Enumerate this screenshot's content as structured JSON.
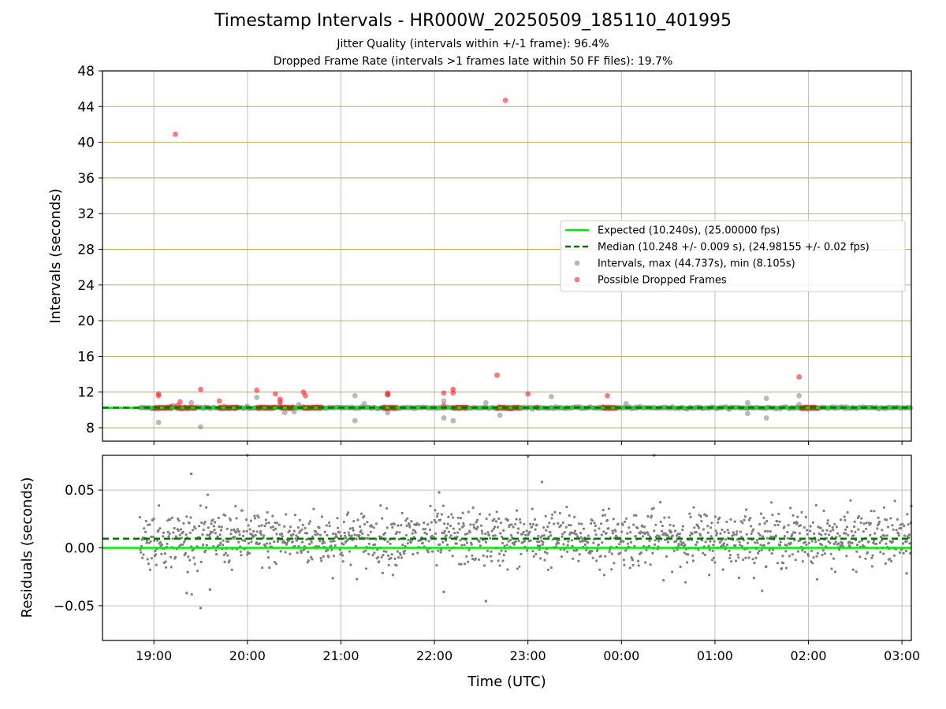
{
  "figure": {
    "title": "Timestamp Intervals - HR000W_20250509_185110_401995",
    "subtitle_1": "Jitter Quality (intervals within +/-1 frame): 96.4%",
    "subtitle_2": "Dropped Frame Rate (intervals >1 frames late within 50 FF files): 19.7%"
  },
  "colors": {
    "expected": "#00ee00",
    "median": "#007700",
    "intervals": "#808080",
    "dropped": "#ff2020",
    "hgrid_top": "#c8a850",
    "grid": "#c0c0c0"
  },
  "chart_data": [
    {
      "type": "scatter",
      "ylabel": "Intervals (seconds)",
      "ylim": [
        6.5,
        48
      ],
      "yticks": [
        8,
        12,
        16,
        20,
        24,
        28,
        32,
        36,
        40,
        44,
        48
      ],
      "x_range_hours": [
        -0.55,
        8.1
      ],
      "legend": {
        "placement": "right",
        "entries": [
          "Expected (10.240s), (25.00000 fps)",
          "Median (10.248 +/- 0.009 s), (24.98155 +/- 0.02 fps)",
          "Intervals, max (44.737s), min (8.105s)",
          "Possible Dropped Frames"
        ]
      },
      "expected_interval": 10.24,
      "median_interval": 10.248,
      "max_interval": 44.737,
      "min_interval": 8.105,
      "main_band": {
        "x_start_hours": -0.15,
        "x_end_hours": 8.1,
        "y": 10.24
      },
      "series": [
        {
          "name": "Intervals, max (44.737s), min (8.105s)",
          "points": [
            [
              0.2,
              10.5
            ],
            [
              0.4,
              10.8
            ],
            [
              0.55,
              10.3
            ],
            [
              0.75,
              10.4
            ],
            [
              1.0,
              10.4
            ],
            [
              1.35,
              10.6
            ],
            [
              1.45,
              10.2
            ],
            [
              0.05,
              8.6
            ],
            [
              0.5,
              8.1
            ],
            [
              1.1,
              11.4
            ],
            [
              1.3,
              10.3
            ],
            [
              1.4,
              9.7
            ],
            [
              1.5,
              9.8
            ],
            [
              1.55,
              10.6
            ],
            [
              2.15,
              11.6
            ],
            [
              2.25,
              10.7
            ],
            [
              2.15,
              8.8
            ],
            [
              2.5,
              11.7
            ],
            [
              2.5,
              9.7
            ],
            [
              3.1,
              9.1
            ],
            [
              3.1,
              11.0
            ],
            [
              3.2,
              8.8
            ],
            [
              3.55,
              10.8
            ],
            [
              3.7,
              9.4
            ],
            [
              4.25,
              11.5
            ],
            [
              4.6,
              10.2
            ],
            [
              5.05,
              10.7
            ],
            [
              5.85,
              10.2
            ],
            [
              6.35,
              10.8
            ],
            [
              6.35,
              9.6
            ],
            [
              6.55,
              11.3
            ],
            [
              6.55,
              9.1
            ],
            [
              6.9,
              11.6
            ],
            [
              6.9,
              10.6
            ]
          ]
        },
        {
          "name": "Possible Dropped Frames",
          "points": [
            [
              0.23,
              40.9
            ],
            [
              0.28,
              10.9
            ],
            [
              0.25,
              10.5
            ],
            [
              0.05,
              11.8
            ],
            [
              0.05,
              11.6
            ],
            [
              0.5,
              12.3
            ],
            [
              0.7,
              11.0
            ],
            [
              1.1,
              12.2
            ],
            [
              1.3,
              11.8
            ],
            [
              1.35,
              11.2
            ],
            [
              1.35,
              10.9
            ],
            [
              1.6,
              12.0
            ],
            [
              1.62,
              11.6
            ],
            [
              2.5,
              11.9
            ],
            [
              2.5,
              11.7
            ],
            [
              3.1,
              11.9
            ],
            [
              3.2,
              12.3
            ],
            [
              3.2,
              11.9
            ],
            [
              3.1,
              10.5
            ],
            [
              3.67,
              13.9
            ],
            [
              3.76,
              44.7
            ],
            [
              4.0,
              11.8
            ],
            [
              4.1,
              10.3
            ],
            [
              4.85,
              11.6
            ],
            [
              6.9,
              13.7
            ]
          ]
        }
      ],
      "dropped_clusters_hours": [
        [
          0.25,
          0.45
        ],
        [
          0.0,
          0.2
        ],
        [
          0.7,
          0.9
        ],
        [
          1.1,
          1.3
        ],
        [
          1.35,
          1.5
        ],
        [
          1.6,
          1.8
        ],
        [
          2.45,
          2.6
        ],
        [
          3.2,
          3.35
        ],
        [
          3.67,
          3.92
        ],
        [
          4.8,
          4.95
        ],
        [
          6.92,
          7.1
        ]
      ]
    },
    {
      "type": "scatter",
      "xlabel": "Time (UTC)",
      "ylabel": "Residuals (seconds)",
      "ylim": [
        -0.08,
        0.08
      ],
      "yticks": [
        -0.05,
        0.0,
        0.05
      ],
      "ytick_labels": [
        "−0.05",
        "0.00",
        "0.05"
      ],
      "x_range_hours": [
        -0.55,
        8.1
      ],
      "xticks": [
        "19:00",
        "20:00",
        "21:00",
        "22:00",
        "23:00",
        "00:00",
        "01:00",
        "02:00",
        "03:00"
      ],
      "expected_residual": 0.0,
      "median_residual": 0.008,
      "residual_spread": 0.012,
      "outliers": [
        [
          0.4,
          0.064
        ],
        [
          0.35,
          -0.039
        ],
        [
          0.5,
          -0.052
        ],
        [
          0.6,
          -0.036
        ],
        [
          1.0,
          0.08
        ],
        [
          3.05,
          0.048
        ],
        [
          3.1,
          -0.038
        ],
        [
          3.55,
          -0.046
        ],
        [
          4.0,
          0.079
        ],
        [
          4.15,
          0.057
        ],
        [
          5.35,
          0.08
        ],
        [
          8.05,
          -0.022
        ]
      ]
    }
  ]
}
